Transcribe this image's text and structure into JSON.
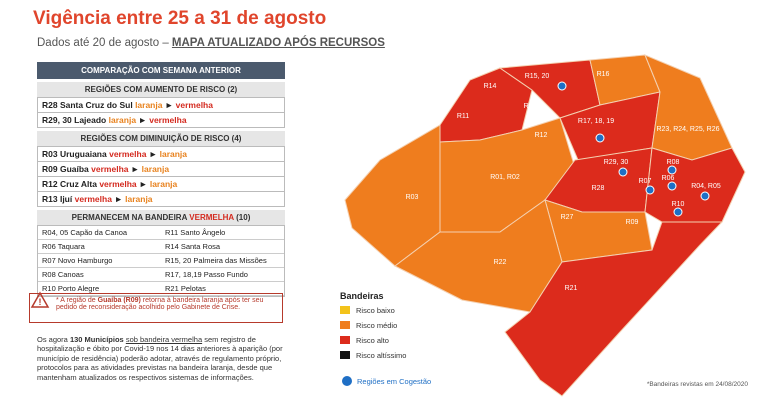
{
  "header": {
    "title": "Vigência entre 25 a 31 de agosto",
    "subtitle": "Dados até 20 de agosto –",
    "subtitle_link": "MAPA ATUALIZADO APÓS RECURSOS"
  },
  "comparison": {
    "title": "COMPARAÇÃO COM SEMANA ANTERIOR",
    "increase": {
      "heading": "REGIÕES COM AUMENTO DE RISCO (2)",
      "rows": [
        {
          "region": "R28 Santa Cruz do Sul",
          "from": "laranja",
          "arrow": "►",
          "to": "vermelha"
        },
        {
          "region": "R29, 30 Lajeado",
          "from": "laranja",
          "arrow": "►",
          "to": "vermelha"
        }
      ]
    },
    "decrease": {
      "heading": "REGIÕES COM DIMINUIÇÃO DE RISCO (4)",
      "rows": [
        {
          "region": "R03 Uruguaiana",
          "from": "vermelha",
          "arrow": "►",
          "to": "laranja"
        },
        {
          "region": "R09 Guaíba",
          "from": "vermelha",
          "arrow": "►",
          "to": "laranja"
        },
        {
          "region": "R12 Cruz Alta",
          "from": "vermelha",
          "arrow": "►",
          "to": "laranja"
        },
        {
          "region": "R13 Ijuí",
          "from": "vermelha",
          "arrow": "►",
          "to": "laranja"
        }
      ]
    },
    "remain": {
      "heading": "PERMANECEM NA BANDEIRA",
      "heading_flag": "VERMELHA",
      "heading_count": "(10)",
      "rows": [
        [
          "R04, 05 Capão da Canoa",
          "R11 Santo Ângelo"
        ],
        [
          "R06 Taquara",
          "R14 Santa Rosa"
        ],
        [
          "R07 Novo Hamburgo",
          "R15, 20 Palmeira das Missões"
        ],
        [
          "R08 Canoas",
          "R17, 18,19 Passo Fundo"
        ],
        [
          "R10 Porto Alegre",
          "R21 Pelotas"
        ]
      ]
    }
  },
  "warning": {
    "prefix": "* A região de",
    "bold": "Guaíba (R09)",
    "text": "retorna à bandeira laranja após ter seu pedido de reconsideração acolhido pelo Gabinete de Crise."
  },
  "note": {
    "prefix": "Os agora",
    "count": "130 Municípios",
    "link": "sob bandeira vermelha",
    "text": "sem registro de hospitalização e óbito por Covid-19 nos 14 dias anteriores à aparição (por município de residência) poderão adotar, através de regulamento próprio, protocolos para as atividades previstas na bandeira laranja, desde que mantenham atualizados os respectivos sistemas de informações."
  },
  "map": {
    "labels": [
      "R16",
      "R15, 20",
      "R14",
      "R11",
      "R13",
      "R12",
      "R17, 18, 19",
      "R23, R24, R25, R26",
      "R29, 30",
      "R28",
      "R01, R02",
      "R03",
      "R08",
      "R07",
      "R06",
      "R04, R05",
      "R10",
      "R27",
      "R09",
      "R22",
      "R21"
    ]
  },
  "legend": {
    "title": "Bandeiras",
    "items": [
      {
        "label": "Risco baixo",
        "color": "#f3c31b"
      },
      {
        "label": "Risco médio",
        "color": "#ef7d1e"
      },
      {
        "label": "Risco alto",
        "color": "#dc2b1c"
      },
      {
        "label": "Risco altíssimo",
        "color": "#111111"
      }
    ],
    "cogestao": "Regiões em Cogestão"
  },
  "footnote": "*Bandeiras revistas em 24/08/2020"
}
